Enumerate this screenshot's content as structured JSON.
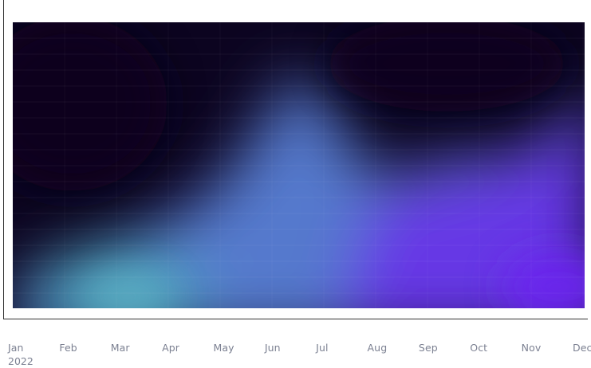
{
  "chart_data": {
    "type": "heatmap",
    "title": "",
    "xlabel": "",
    "ylabel": "",
    "x_tick_labels": [
      "Jan",
      "Feb",
      "Mar",
      "Apr",
      "May",
      "Jun",
      "Jul",
      "Aug",
      "Sep",
      "Oct",
      "Nov",
      "Dec"
    ],
    "year_label": "2022",
    "grid": true,
    "legend": "none",
    "colors": {
      "background": "#0c0420",
      "teal": "#4fa3bf",
      "blue": "#5a7fd6",
      "violet": "#6a2bea",
      "axis": "#333333",
      "tick_text": "#7c8192"
    }
  }
}
